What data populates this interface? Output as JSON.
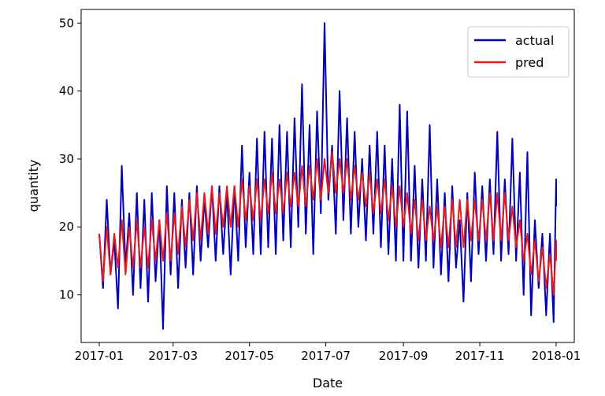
{
  "chart_data": {
    "type": "line",
    "xlabel": "Date",
    "ylabel": "quantity",
    "xlim": [
      "2017-01-01",
      "2018-01-01"
    ],
    "ylim": [
      3,
      52
    ],
    "x_ticks": [
      "2017-01",
      "2017-03",
      "2017-05",
      "2017-07",
      "2017-09",
      "2017-11",
      "2018-01"
    ],
    "y_ticks": [
      10,
      20,
      30,
      40,
      50
    ],
    "legend_position": "top-right",
    "grid": false,
    "colors": {
      "actual": "#0000bb",
      "pred": "#e41a1c"
    },
    "series": [
      {
        "name": "actual",
        "points": [
          [
            "2017-01-01",
            19
          ],
          [
            "2017-01-04",
            11
          ],
          [
            "2017-01-07",
            24
          ],
          [
            "2017-01-10",
            13
          ],
          [
            "2017-01-13",
            18
          ],
          [
            "2017-01-16",
            8
          ],
          [
            "2017-01-19",
            29
          ],
          [
            "2017-01-22",
            14
          ],
          [
            "2017-01-25",
            22
          ],
          [
            "2017-01-28",
            10
          ],
          [
            "2017-01-31",
            25
          ],
          [
            "2017-02-03",
            11
          ],
          [
            "2017-02-06",
            24
          ],
          [
            "2017-02-09",
            9
          ],
          [
            "2017-02-12",
            25
          ],
          [
            "2017-02-15",
            12
          ],
          [
            "2017-02-18",
            21
          ],
          [
            "2017-02-21",
            5
          ],
          [
            "2017-02-24",
            26
          ],
          [
            "2017-02-27",
            13
          ],
          [
            "2017-03-02",
            25
          ],
          [
            "2017-03-05",
            11
          ],
          [
            "2017-03-08",
            24
          ],
          [
            "2017-03-11",
            14
          ],
          [
            "2017-03-14",
            25
          ],
          [
            "2017-03-17",
            13
          ],
          [
            "2017-03-20",
            26
          ],
          [
            "2017-03-23",
            15
          ],
          [
            "2017-03-26",
            24
          ],
          [
            "2017-03-29",
            17
          ],
          [
            "2017-04-01",
            26
          ],
          [
            "2017-04-04",
            15
          ],
          [
            "2017-04-07",
            26
          ],
          [
            "2017-04-10",
            16
          ],
          [
            "2017-04-13",
            25
          ],
          [
            "2017-04-16",
            13
          ],
          [
            "2017-04-19",
            26
          ],
          [
            "2017-04-22",
            15
          ],
          [
            "2017-04-25",
            32
          ],
          [
            "2017-04-28",
            17
          ],
          [
            "2017-05-01",
            28
          ],
          [
            "2017-05-04",
            16
          ],
          [
            "2017-05-07",
            33
          ],
          [
            "2017-05-10",
            16
          ],
          [
            "2017-05-13",
            34
          ],
          [
            "2017-05-16",
            17
          ],
          [
            "2017-05-19",
            33
          ],
          [
            "2017-05-22",
            16
          ],
          [
            "2017-05-25",
            35
          ],
          [
            "2017-05-28",
            18
          ],
          [
            "2017-05-31",
            34
          ],
          [
            "2017-06-03",
            17
          ],
          [
            "2017-06-06",
            36
          ],
          [
            "2017-06-09",
            20
          ],
          [
            "2017-06-12",
            41
          ],
          [
            "2017-06-15",
            19
          ],
          [
            "2017-06-18",
            35
          ],
          [
            "2017-06-21",
            16
          ],
          [
            "2017-06-24",
            37
          ],
          [
            "2017-06-27",
            22
          ],
          [
            "2017-06-30",
            50
          ],
          [
            "2017-07-03",
            24
          ],
          [
            "2017-07-06",
            32
          ],
          [
            "2017-07-09",
            19
          ],
          [
            "2017-07-12",
            40
          ],
          [
            "2017-07-15",
            21
          ],
          [
            "2017-07-18",
            36
          ],
          [
            "2017-07-21",
            19
          ],
          [
            "2017-07-24",
            34
          ],
          [
            "2017-07-27",
            20
          ],
          [
            "2017-07-30",
            30
          ],
          [
            "2017-08-02",
            18
          ],
          [
            "2017-08-05",
            32
          ],
          [
            "2017-08-08",
            19
          ],
          [
            "2017-08-11",
            34
          ],
          [
            "2017-08-14",
            17
          ],
          [
            "2017-08-17",
            32
          ],
          [
            "2017-08-20",
            16
          ],
          [
            "2017-08-23",
            30
          ],
          [
            "2017-08-26",
            15
          ],
          [
            "2017-08-29",
            38
          ],
          [
            "2017-09-01",
            15
          ],
          [
            "2017-09-04",
            37
          ],
          [
            "2017-09-07",
            15
          ],
          [
            "2017-09-10",
            29
          ],
          [
            "2017-09-13",
            14
          ],
          [
            "2017-09-16",
            27
          ],
          [
            "2017-09-19",
            15
          ],
          [
            "2017-09-22",
            35
          ],
          [
            "2017-09-25",
            14
          ],
          [
            "2017-09-28",
            27
          ],
          [
            "2017-10-01",
            13
          ],
          [
            "2017-10-04",
            25
          ],
          [
            "2017-10-07",
            12
          ],
          [
            "2017-10-10",
            26
          ],
          [
            "2017-10-13",
            14
          ],
          [
            "2017-10-16",
            21
          ],
          [
            "2017-10-19",
            9
          ],
          [
            "2017-10-22",
            25
          ],
          [
            "2017-10-25",
            12
          ],
          [
            "2017-10-28",
            28
          ],
          [
            "2017-10-31",
            16
          ],
          [
            "2017-11-03",
            26
          ],
          [
            "2017-11-06",
            15
          ],
          [
            "2017-11-09",
            27
          ],
          [
            "2017-11-12",
            16
          ],
          [
            "2017-11-15",
            34
          ],
          [
            "2017-11-18",
            15
          ],
          [
            "2017-11-21",
            27
          ],
          [
            "2017-11-24",
            16
          ],
          [
            "2017-11-27",
            33
          ],
          [
            "2017-11-30",
            15
          ],
          [
            "2017-12-03",
            28
          ],
          [
            "2017-12-06",
            10
          ],
          [
            "2017-12-09",
            31
          ],
          [
            "2017-12-12",
            7
          ],
          [
            "2017-12-15",
            21
          ],
          [
            "2017-12-18",
            11
          ],
          [
            "2017-12-21",
            19
          ],
          [
            "2017-12-24",
            7
          ],
          [
            "2017-12-27",
            19
          ],
          [
            "2017-12-30",
            6
          ],
          [
            "2018-01-01",
            27
          ],
          [
            "2018-01-01",
            23
          ]
        ]
      },
      {
        "name": "pred",
        "points": [
          [
            "2017-01-01",
            19
          ],
          [
            "2017-01-04",
            12
          ],
          [
            "2017-01-07",
            20
          ],
          [
            "2017-01-10",
            13
          ],
          [
            "2017-01-13",
            19
          ],
          [
            "2017-01-16",
            14
          ],
          [
            "2017-01-19",
            21
          ],
          [
            "2017-01-22",
            13
          ],
          [
            "2017-01-25",
            20
          ],
          [
            "2017-01-28",
            14
          ],
          [
            "2017-01-31",
            21
          ],
          [
            "2017-02-03",
            14
          ],
          [
            "2017-02-06",
            20
          ],
          [
            "2017-02-09",
            14
          ],
          [
            "2017-02-12",
            21
          ],
          [
            "2017-02-15",
            15
          ],
          [
            "2017-02-18",
            21
          ],
          [
            "2017-02-21",
            15
          ],
          [
            "2017-02-24",
            22
          ],
          [
            "2017-02-27",
            15
          ],
          [
            "2017-03-02",
            22
          ],
          [
            "2017-03-05",
            16
          ],
          [
            "2017-03-08",
            23
          ],
          [
            "2017-03-11",
            17
          ],
          [
            "2017-03-14",
            24
          ],
          [
            "2017-03-17",
            18
          ],
          [
            "2017-03-20",
            25
          ],
          [
            "2017-03-23",
            18
          ],
          [
            "2017-03-26",
            25
          ],
          [
            "2017-03-29",
            19
          ],
          [
            "2017-04-01",
            26
          ],
          [
            "2017-04-04",
            19
          ],
          [
            "2017-04-07",
            25
          ],
          [
            "2017-04-10",
            20
          ],
          [
            "2017-04-13",
            26
          ],
          [
            "2017-04-16",
            20
          ],
          [
            "2017-04-19",
            26
          ],
          [
            "2017-04-22",
            20
          ],
          [
            "2017-04-25",
            27
          ],
          [
            "2017-04-28",
            21
          ],
          [
            "2017-05-01",
            26
          ],
          [
            "2017-05-04",
            21
          ],
          [
            "2017-05-07",
            27
          ],
          [
            "2017-05-10",
            21
          ],
          [
            "2017-05-13",
            27
          ],
          [
            "2017-05-16",
            22
          ],
          [
            "2017-05-19",
            28
          ],
          [
            "2017-05-22",
            22
          ],
          [
            "2017-05-25",
            27
          ],
          [
            "2017-05-28",
            22
          ],
          [
            "2017-05-31",
            28
          ],
          [
            "2017-06-03",
            23
          ],
          [
            "2017-06-06",
            28
          ],
          [
            "2017-06-09",
            23
          ],
          [
            "2017-06-12",
            29
          ],
          [
            "2017-06-15",
            23
          ],
          [
            "2017-06-18",
            29
          ],
          [
            "2017-06-21",
            24
          ],
          [
            "2017-06-24",
            30
          ],
          [
            "2017-06-27",
            24
          ],
          [
            "2017-06-30",
            30
          ],
          [
            "2017-07-03",
            25
          ],
          [
            "2017-07-06",
            31
          ],
          [
            "2017-07-09",
            25
          ],
          [
            "2017-07-12",
            30
          ],
          [
            "2017-07-15",
            25
          ],
          [
            "2017-07-18",
            30
          ],
          [
            "2017-07-21",
            24
          ],
          [
            "2017-07-24",
            29
          ],
          [
            "2017-07-27",
            24
          ],
          [
            "2017-07-30",
            28
          ],
          [
            "2017-08-02",
            23
          ],
          [
            "2017-08-05",
            28
          ],
          [
            "2017-08-08",
            22
          ],
          [
            "2017-08-11",
            27
          ],
          [
            "2017-08-14",
            22
          ],
          [
            "2017-08-17",
            27
          ],
          [
            "2017-08-20",
            21
          ],
          [
            "2017-08-23",
            26
          ],
          [
            "2017-08-26",
            20
          ],
          [
            "2017-08-29",
            26
          ],
          [
            "2017-09-01",
            20
          ],
          [
            "2017-09-04",
            25
          ],
          [
            "2017-09-07",
            19
          ],
          [
            "2017-09-10",
            24
          ],
          [
            "2017-09-13",
            18
          ],
          [
            "2017-09-16",
            24
          ],
          [
            "2017-09-19",
            18
          ],
          [
            "2017-09-22",
            23
          ],
          [
            "2017-09-25",
            18
          ],
          [
            "2017-09-28",
            23
          ],
          [
            "2017-10-01",
            17
          ],
          [
            "2017-10-04",
            23
          ],
          [
            "2017-10-07",
            17
          ],
          [
            "2017-10-10",
            24
          ],
          [
            "2017-10-13",
            17
          ],
          [
            "2017-10-16",
            24
          ],
          [
            "2017-10-19",
            17
          ],
          [
            "2017-10-22",
            24
          ],
          [
            "2017-10-25",
            18
          ],
          [
            "2017-10-28",
            24
          ],
          [
            "2017-10-31",
            18
          ],
          [
            "2017-11-03",
            24
          ],
          [
            "2017-11-06",
            18
          ],
          [
            "2017-11-09",
            25
          ],
          [
            "2017-11-12",
            18
          ],
          [
            "2017-11-15",
            25
          ],
          [
            "2017-11-18",
            18
          ],
          [
            "2017-11-21",
            25
          ],
          [
            "2017-11-24",
            18
          ],
          [
            "2017-11-27",
            23
          ],
          [
            "2017-11-30",
            17
          ],
          [
            "2017-12-03",
            21
          ],
          [
            "2017-12-06",
            15
          ],
          [
            "2017-12-09",
            19
          ],
          [
            "2017-12-12",
            13
          ],
          [
            "2017-12-15",
            18
          ],
          [
            "2017-12-18",
            12
          ],
          [
            "2017-12-21",
            17
          ],
          [
            "2017-12-24",
            11
          ],
          [
            "2017-12-27",
            16
          ],
          [
            "2017-12-30",
            10
          ],
          [
            "2018-01-01",
            18
          ],
          [
            "2018-01-01",
            15
          ]
        ]
      }
    ]
  }
}
